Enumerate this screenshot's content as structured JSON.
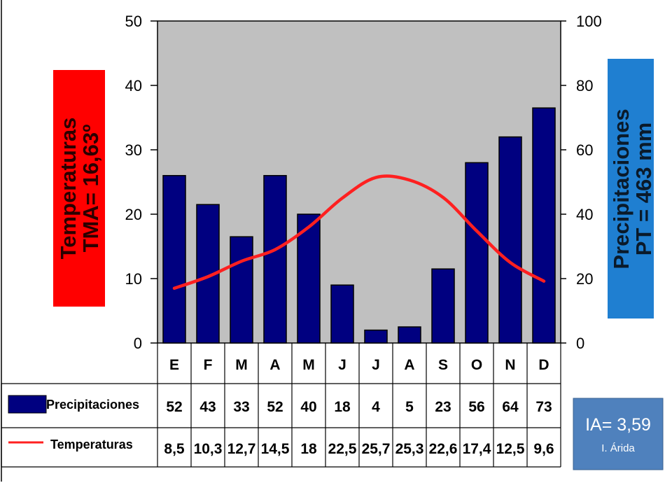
{
  "colors": {
    "bars": "#000080",
    "line": "#ff2020",
    "plot_bg": "#c0c0c0",
    "temp_box": "#ff0000",
    "precip_box": "#1f7fd1",
    "ia_box": "#4f81bd"
  },
  "labels": {
    "temp_line1": "Temperaturas",
    "temp_line2": "TMA= 16,63º",
    "precip_line1": "Precipitaciones",
    "precip_line2": "PT = 463 mm",
    "ia_main": "IA= 3,59",
    "ia_sub": "I. Árida"
  },
  "chart_data": {
    "type": "bar",
    "categories": [
      "E",
      "F",
      "M",
      "A",
      "M",
      "J",
      "J",
      "A",
      "S",
      "O",
      "N",
      "D"
    ],
    "series": [
      {
        "name": "Precipitaciones",
        "type": "bar",
        "axis": "right",
        "values": [
          52,
          43,
          33,
          52,
          40,
          18,
          4,
          5,
          23,
          56,
          64,
          73
        ],
        "labels": [
          "52",
          "43",
          "33",
          "52",
          "40",
          "18",
          "4",
          "5",
          "23",
          "56",
          "64",
          "73"
        ]
      },
      {
        "name": "Temperaturas",
        "type": "line",
        "axis": "left",
        "values": [
          8.5,
          10.3,
          12.7,
          14.5,
          18,
          22.5,
          25.7,
          25.3,
          22.6,
          17.4,
          12.5,
          9.6
        ],
        "labels": [
          "8,5",
          "10,3",
          "12,7",
          "14,5",
          "18",
          "22,5",
          "25,7",
          "25,3",
          "22,6",
          "17,4",
          "12,5",
          "9,6"
        ]
      }
    ],
    "y_left": {
      "min": 0,
      "max": 50,
      "ticks": [
        0,
        10,
        20,
        30,
        40,
        50
      ]
    },
    "y_right": {
      "min": 0,
      "max": 100,
      "ticks": [
        0,
        20,
        40,
        60,
        80,
        100
      ]
    },
    "grid": false,
    "legend_placement": "bottom-table"
  }
}
